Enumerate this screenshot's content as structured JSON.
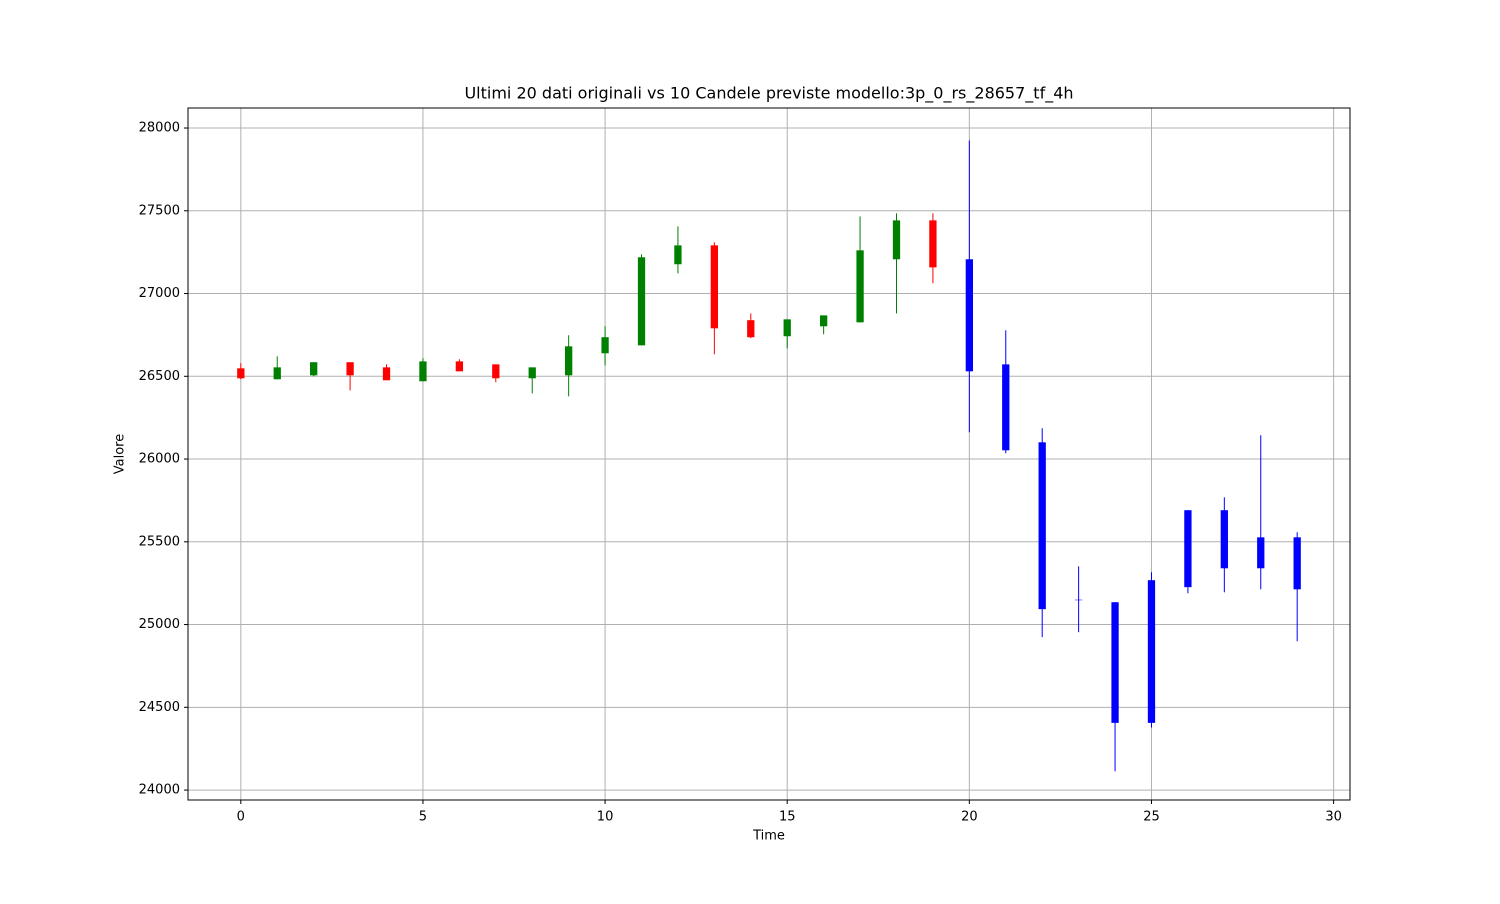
{
  "chart_data": {
    "type": "candlestick",
    "title": "Ultimi 20 dati originali vs 10 Candele previste modello:3p_0_rs_28657_tf_4h",
    "x_label": "Time",
    "y_label": "Valore",
    "x": [
      0,
      1,
      2,
      3,
      4,
      5,
      6,
      7,
      8,
      9,
      10,
      11,
      12,
      13,
      14,
      15,
      16,
      17,
      18,
      19,
      20,
      21,
      22,
      23,
      24,
      25,
      26,
      27,
      28,
      29
    ],
    "open": [
      26548,
      26482,
      26506,
      26585,
      26554,
      26470,
      26590,
      26572,
      26488,
      26506,
      26639,
      26687,
      27177,
      27291,
      26839,
      26742,
      26802,
      26826,
      27207,
      27442,
      27207,
      26572,
      26101,
      25150,
      25135,
      24406,
      25226,
      25340,
      25527,
      25527
    ],
    "high": [
      26579,
      26621,
      26585,
      26585,
      26572,
      26609,
      26603,
      26572,
      26554,
      26748,
      26802,
      27237,
      27406,
      27310,
      26880,
      26844,
      26868,
      27466,
      27485,
      27485,
      27925,
      26778,
      26186,
      25352,
      25135,
      25316,
      25691,
      25769,
      26144,
      25558
    ],
    "low": [
      26482,
      26482,
      26500,
      26415,
      26476,
      26470,
      26530,
      26464,
      26397,
      26379,
      26566,
      26687,
      27122,
      26633,
      26730,
      26669,
      26754,
      26826,
      26880,
      27062,
      26162,
      26035,
      24924,
      24954,
      24114,
      24378,
      25189,
      25195,
      25213,
      24899
    ],
    "close": [
      26488,
      26554,
      26585,
      26506,
      26476,
      26590,
      26530,
      26488,
      26554,
      26681,
      26736,
      27219,
      27291,
      26790,
      26736,
      26844,
      26868,
      27261,
      27442,
      27158,
      26530,
      26053,
      25093,
      25150,
      24406,
      25268,
      25691,
      25691,
      25340,
      25213
    ],
    "colors": [
      "red",
      "green",
      "green",
      "red",
      "red",
      "green",
      "red",
      "red",
      "green",
      "green",
      "green",
      "green",
      "green",
      "red",
      "red",
      "green",
      "green",
      "green",
      "green",
      "red",
      "blue",
      "blue",
      "blue",
      "blue",
      "blue",
      "blue",
      "blue",
      "blue",
      "blue",
      "blue"
    ],
    "xlim": [
      -1.45,
      30.45
    ],
    "ylim": [
      23940,
      28121
    ],
    "xticks": [
      0,
      5,
      10,
      15,
      20,
      25,
      30
    ],
    "yticks": [
      24000,
      24500,
      25000,
      25500,
      26000,
      26500,
      27000,
      27500,
      28000
    ],
    "grid": true
  }
}
